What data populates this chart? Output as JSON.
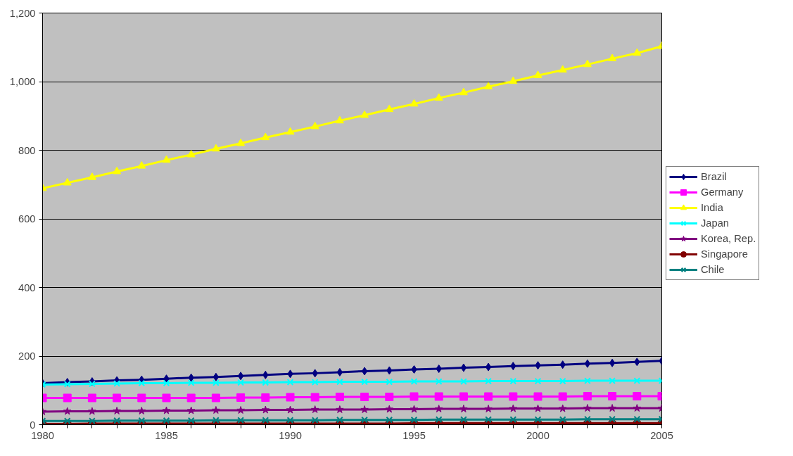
{
  "chart_data": {
    "type": "line",
    "x": [
      1980,
      1981,
      1982,
      1983,
      1984,
      1985,
      1986,
      1987,
      1988,
      1989,
      1990,
      1991,
      1992,
      1993,
      1994,
      1995,
      1996,
      1997,
      1998,
      1999,
      2000,
      2001,
      2002,
      2003,
      2004,
      2005
    ],
    "xlim": [
      1980,
      2005
    ],
    "xticks": [
      1980,
      {
        "value": 1981,
        "label": null
      },
      {
        "value": 1982,
        "label": null
      },
      {
        "value": 1983,
        "label": null
      },
      {
        "value": 1984,
        "label": null
      },
      1985,
      {
        "value": 1986,
        "label": null
      },
      {
        "value": 1987,
        "label": null
      },
      {
        "value": 1988,
        "label": null
      },
      {
        "value": 1989,
        "label": null
      },
      1990,
      {
        "value": 1991,
        "label": null
      },
      {
        "value": 1992,
        "label": null
      },
      {
        "value": 1993,
        "label": null
      },
      {
        "value": 1994,
        "label": null
      },
      1995,
      {
        "value": 1996,
        "label": null
      },
      {
        "value": 1997,
        "label": null
      },
      {
        "value": 1998,
        "label": null
      },
      {
        "value": 1999,
        "label": null
      },
      2000,
      {
        "value": 2001,
        "label": null
      },
      {
        "value": 2002,
        "label": null
      },
      {
        "value": 2003,
        "label": null
      },
      {
        "value": 2004,
        "label": null
      },
      2005
    ],
    "ylim": [
      0,
      1200
    ],
    "yticks": [
      0,
      200,
      400,
      600,
      800,
      {
        "value": 1000,
        "label": "1,000"
      },
      {
        "value": 1200,
        "label": "1,200"
      }
    ],
    "grid": "y",
    "legend": "right",
    "series": [
      {
        "name": "Brazil",
        "color": "#000080",
        "marker": "diamond",
        "values": [
          121,
          124,
          126,
          129,
          131,
          134,
          137,
          139,
          142,
          145,
          148,
          150,
          153,
          156,
          158,
          161,
          163,
          166,
          168,
          171,
          173,
          175,
          178,
          180,
          183,
          186
        ]
      },
      {
        "name": "Germany",
        "color": "#ff00ff",
        "marker": "square",
        "values": [
          78,
          78,
          78,
          78,
          78,
          78,
          78,
          78,
          79,
          79,
          80,
          80,
          81,
          81,
          81,
          82,
          82,
          82,
          82,
          82,
          82,
          82,
          83,
          83,
          83,
          83
        ]
      },
      {
        "name": "India",
        "color": "#ffff00",
        "marker": "triangle",
        "values": [
          689,
          705,
          721,
          738,
          754,
          771,
          787,
          804,
          820,
          837,
          853,
          869,
          886,
          902,
          919,
          935,
          952,
          968,
          985,
          1001,
          1018,
          1034,
          1050,
          1067,
          1083,
          1103
        ]
      },
      {
        "name": "Japan",
        "color": "#00ffff",
        "marker": "cross",
        "values": [
          117,
          118,
          119,
          120,
          121,
          121,
          122,
          122,
          123,
          123,
          124,
          124,
          125,
          125,
          125,
          126,
          126,
          126,
          127,
          127,
          127,
          127,
          128,
          128,
          128,
          128
        ]
      },
      {
        "name": "Korea, Rep.",
        "color": "#800080",
        "marker": "star",
        "values": [
          38,
          39,
          39,
          40,
          40,
          41,
          41,
          42,
          42,
          43,
          43,
          44,
          44,
          44,
          45,
          45,
          46,
          46,
          46,
          47,
          47,
          47,
          48,
          48,
          48,
          48
        ]
      },
      {
        "name": "Singapore",
        "color": "#800000",
        "marker": "circle",
        "values": [
          2,
          2,
          3,
          3,
          3,
          3,
          3,
          3,
          3,
          3,
          3,
          3,
          3,
          3,
          3,
          4,
          4,
          4,
          4,
          4,
          4,
          4,
          4,
          4,
          4,
          4
        ]
      },
      {
        "name": "Chile",
        "color": "#008080",
        "marker": "cross",
        "values": [
          11,
          11,
          11,
          12,
          12,
          12,
          12,
          13,
          13,
          13,
          13,
          13,
          14,
          14,
          14,
          14,
          15,
          15,
          15,
          15,
          15,
          15,
          16,
          16,
          16,
          16
        ]
      }
    ]
  }
}
